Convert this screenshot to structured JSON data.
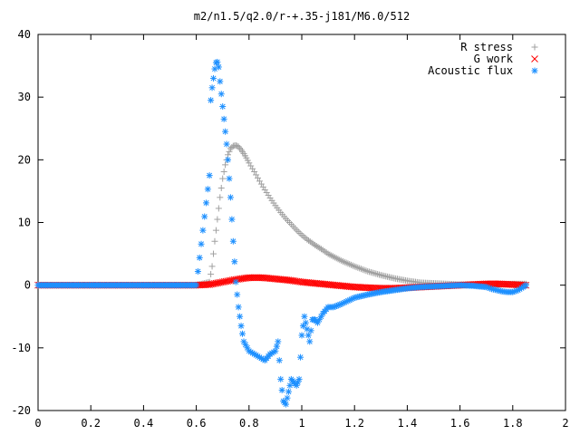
{
  "chart_data": {
    "type": "scatter",
    "title": "m2/n1.5/q2.0/r-+.35-j181/M6.0/512",
    "xlabel": "",
    "ylabel": "",
    "xlim": [
      0,
      2
    ],
    "ylim": [
      -20,
      40
    ],
    "xticks": [
      "0",
      "0.2",
      "0.4",
      "0.6",
      "0.8",
      "1",
      "1.2",
      "1.4",
      "1.6",
      "1.8",
      "2"
    ],
    "yticks": [
      "-20",
      "-10",
      "0",
      "10",
      "20",
      "30",
      "40"
    ],
    "grid": false,
    "legend_position": "top-right",
    "series": [
      {
        "name": "R stress",
        "marker": "plus",
        "color": "#a0a0a0",
        "x": [
          0.0,
          0.1,
          0.2,
          0.3,
          0.4,
          0.5,
          0.6,
          0.65,
          0.66,
          0.67,
          0.68,
          0.69,
          0.7,
          0.71,
          0.72,
          0.73,
          0.74,
          0.75,
          0.76,
          0.77,
          0.78,
          0.79,
          0.8,
          0.82,
          0.84,
          0.86,
          0.88,
          0.9,
          0.92,
          0.94,
          0.96,
          0.98,
          1.0,
          1.02,
          1.05,
          1.08,
          1.1,
          1.15,
          1.2,
          1.25,
          1.3,
          1.35,
          1.4,
          1.45,
          1.5,
          1.55,
          1.6,
          1.65,
          1.7,
          1.75,
          1.8,
          1.85
        ],
        "y": [
          0,
          0,
          0,
          0,
          0,
          0,
          0,
          0.5,
          3,
          7,
          10.5,
          14,
          17,
          19.2,
          20.8,
          21.8,
          22.2,
          22.3,
          22.1,
          21.6,
          21.0,
          20.3,
          19.5,
          18.1,
          16.6,
          15.2,
          13.9,
          12.7,
          11.6,
          10.6,
          9.7,
          8.8,
          8.0,
          7.3,
          6.4,
          5.6,
          5.0,
          3.9,
          3.0,
          2.2,
          1.6,
          1.1,
          0.7,
          0.4,
          0.3,
          0.2,
          0.1,
          0.1,
          0.1,
          0.1,
          0.2,
          0.2
        ]
      },
      {
        "name": "G work",
        "marker": "cross",
        "color": "#ff0000",
        "x": [
          0.0,
          0.1,
          0.2,
          0.3,
          0.4,
          0.5,
          0.6,
          0.65,
          0.7,
          0.75,
          0.8,
          0.85,
          0.9,
          0.95,
          1.0,
          1.05,
          1.1,
          1.15,
          1.2,
          1.25,
          1.3,
          1.35,
          1.4,
          1.45,
          1.5,
          1.55,
          1.6,
          1.65,
          1.7,
          1.75,
          1.8,
          1.85
        ],
        "y": [
          0,
          0,
          0,
          0,
          0,
          0,
          0,
          0.1,
          0.5,
          0.9,
          1.2,
          1.2,
          1.0,
          0.8,
          0.5,
          0.3,
          0.1,
          -0.1,
          -0.3,
          -0.4,
          -0.5,
          -0.5,
          -0.4,
          -0.3,
          -0.2,
          -0.1,
          0,
          0.1,
          0.2,
          0.2,
          0.1,
          0
        ]
      },
      {
        "name": "Acoustic flux",
        "marker": "star",
        "color": "#1e90ff",
        "x": [
          0.0,
          0.1,
          0.2,
          0.3,
          0.4,
          0.5,
          0.6,
          0.65,
          0.655,
          0.66,
          0.665,
          0.67,
          0.675,
          0.68,
          0.685,
          0.69,
          0.695,
          0.7,
          0.705,
          0.71,
          0.715,
          0.72,
          0.73,
          0.74,
          0.75,
          0.76,
          0.77,
          0.78,
          0.8,
          0.82,
          0.84,
          0.86,
          0.88,
          0.9,
          0.91,
          0.92,
          0.93,
          0.94,
          0.95,
          0.96,
          0.97,
          0.98,
          0.99,
          1.0,
          1.01,
          1.02,
          1.03,
          1.04,
          1.05,
          1.06,
          1.08,
          1.1,
          1.12,
          1.15,
          1.2,
          1.25,
          1.3,
          1.35,
          1.4,
          1.45,
          1.5,
          1.55,
          1.6,
          1.65,
          1.7,
          1.72,
          1.74,
          1.76,
          1.78,
          1.8,
          1.82,
          1.84,
          1.85
        ],
        "y": [
          0,
          0,
          0,
          0,
          0,
          0,
          0,
          17.5,
          29.5,
          31.5,
          33,
          34.5,
          35.5,
          35.6,
          34.8,
          32.5,
          30.5,
          28.5,
          26.5,
          24.5,
          22.5,
          20,
          14,
          7,
          0.5,
          -3.5,
          -6.5,
          -9,
          -10.5,
          -11,
          -11.5,
          -12,
          -11,
          -10.5,
          -9,
          -15,
          -18.5,
          -19,
          -17,
          -15,
          -15.5,
          -16,
          -15,
          -8,
          -5,
          -7,
          -9,
          -5.5,
          -5.5,
          -6,
          -4.5,
          -3.5,
          -3.5,
          -3,
          -2,
          -1.5,
          -1.1,
          -0.8,
          -0.5,
          -0.3,
          -0.2,
          -0.1,
          0,
          -0.1,
          -0.3,
          -0.6,
          -0.8,
          -1,
          -1.1,
          -1.1,
          -0.8,
          -0.3,
          0
        ]
      }
    ]
  }
}
